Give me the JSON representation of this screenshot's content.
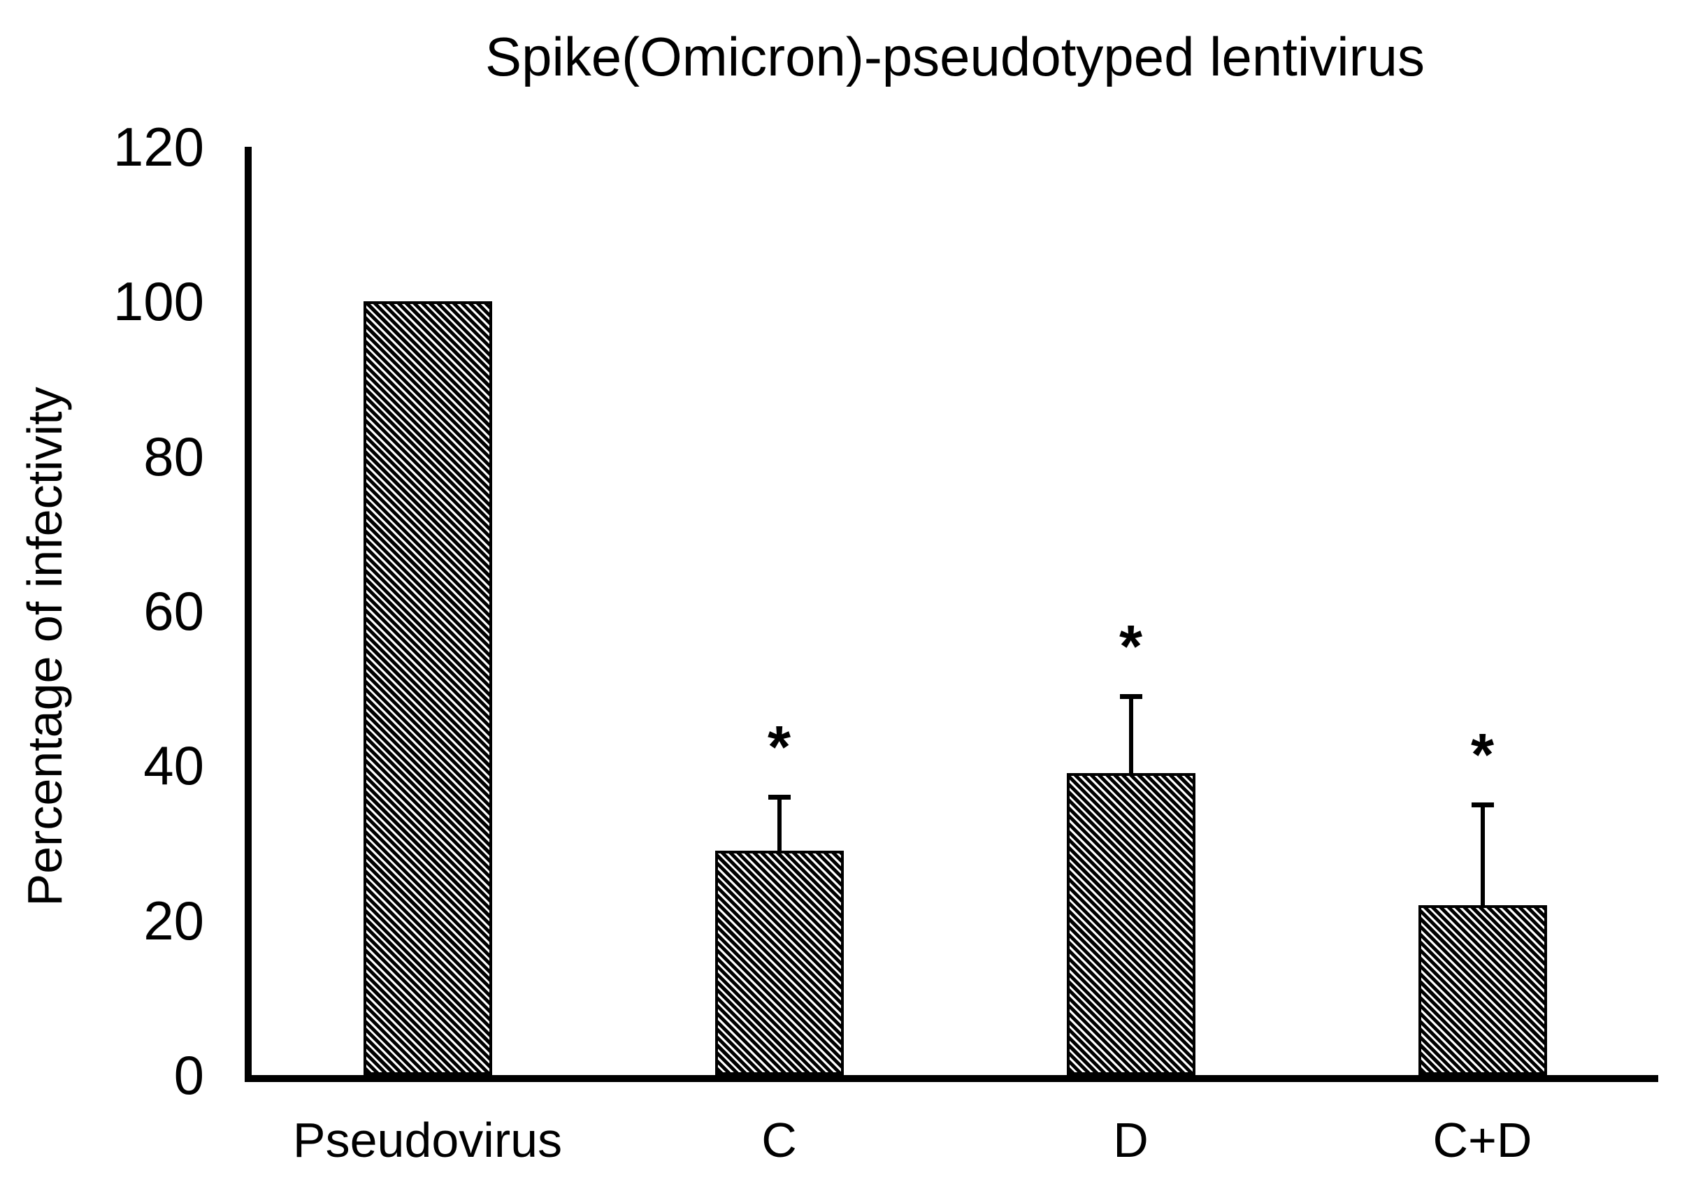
{
  "chart_data": {
    "type": "bar",
    "title": "Spike(Omicron)-pseudotyped lentivirus",
    "xlabel": "",
    "ylabel": "Percentage of infectivity",
    "categories": [
      "Pseudovirus",
      "C",
      "D",
      "C+D"
    ],
    "values": [
      100,
      29,
      39,
      22
    ],
    "error_plus": [
      0,
      7,
      10,
      13
    ],
    "significance": [
      "",
      "*",
      "*",
      "*"
    ],
    "ylim": [
      0,
      120
    ],
    "yticks": [
      0,
      20,
      40,
      60,
      80,
      100,
      120
    ],
    "grid": false,
    "legend": false,
    "bar_fill": "diagonal-hatch",
    "bar_stroke": "#000000",
    "background": "#ffffff"
  }
}
